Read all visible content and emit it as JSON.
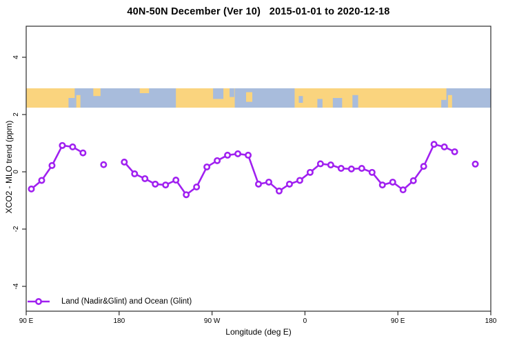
{
  "title": "40N-50N December (Ver 10)   2015-01-01 to 2020-12-18",
  "axes": {
    "x_label": "Longitude (deg E)",
    "y_label": "XCO2 - MLO trend (ppm)"
  },
  "legend": {
    "label": "Land (Nadir&Glint) and Ocean (Glint)"
  },
  "colors": {
    "series": "#A020F0",
    "marker_fill": "#ffffff",
    "land": "#FAD47E",
    "ocean": "#A8BCDC",
    "axis": "#2b2b2b"
  },
  "chart_data": {
    "type": "line",
    "title": "40N-50N December (Ver 10)   2015-01-01 to 2020-12-18",
    "xlabel": "Longitude (deg E)",
    "ylabel": "XCO2 - MLO trend (ppm)",
    "ylim": [
      -5,
      5
    ],
    "grid": false,
    "legend_position": "bottom-left-inside",
    "x_axis": {
      "extended_deg_range": [
        90,
        540
      ],
      "tick_deg": [
        90,
        180,
        270,
        360,
        450,
        540
      ],
      "tick_labels": [
        "90 E",
        "180",
        "90 W",
        "0",
        "90 E",
        "180"
      ],
      "note": "longitude axis wraps eastward: 90E to 180 to 90W to 0 to 90E to 180"
    },
    "y_axis": {
      "tick_values": [
        4,
        2,
        0,
        -2,
        -4
      ],
      "tick_labels": [
        "4",
        "2",
        "0",
        "-2",
        "-4"
      ]
    },
    "series": [
      {
        "name": "Land (Nadir&Glint) and Ocean (Glint)",
        "marker": "open-circle",
        "segments": [
          [
            [
              95,
              -0.6
            ],
            [
              105,
              -0.3
            ],
            [
              115,
              0.22
            ],
            [
              125,
              0.92
            ],
            [
              135,
              0.87
            ],
            [
              145,
              0.66
            ]
          ],
          [
            [
              165,
              0.25
            ]
          ],
          [
            [
              185,
              0.34
            ],
            [
              195,
              -0.07
            ],
            [
              205,
              -0.24
            ],
            [
              215,
              -0.43
            ],
            [
              225,
              -0.46
            ],
            [
              235,
              -0.29
            ],
            [
              245,
              -0.8
            ],
            [
              255,
              -0.53
            ],
            [
              265,
              0.17
            ],
            [
              275,
              0.39
            ],
            [
              285,
              0.58
            ],
            [
              295,
              0.63
            ],
            [
              305,
              0.58
            ],
            [
              315,
              -0.43
            ],
            [
              325,
              -0.36
            ],
            [
              335,
              -0.67
            ],
            [
              345,
              -0.43
            ],
            [
              355,
              -0.3
            ],
            [
              365,
              -0.02
            ],
            [
              375,
              0.28
            ],
            [
              385,
              0.24
            ],
            [
              395,
              0.12
            ],
            [
              405,
              0.1
            ],
            [
              415,
              0.12
            ],
            [
              425,
              -0.02
            ],
            [
              435,
              -0.46
            ],
            [
              445,
              -0.36
            ],
            [
              455,
              -0.63
            ],
            [
              465,
              -0.31
            ],
            [
              475,
              0.19
            ],
            [
              485,
              0.96
            ],
            [
              495,
              0.87
            ],
            [
              505,
              0.7
            ]
          ],
          [
            [
              525,
              0.27
            ]
          ]
        ]
      }
    ],
    "map_band": {
      "description": "land/ocean strip for latitudes 40N-50N drawn across the longitude axis",
      "y_range_ppm": [
        2.25,
        2.92
      ],
      "base": "land",
      "ocean_segments": [
        [
          137,
          235
        ],
        [
          292,
          350
        ],
        [
          497,
          540
        ]
      ],
      "patches": [
        {
          "from": 131,
          "to": 137,
          "top": 0.5,
          "bottom": 1,
          "type": "water"
        },
        {
          "from": 138.5,
          "to": 142.5,
          "top": 0.35,
          "bottom": 1,
          "type": "land"
        },
        {
          "from": 155,
          "to": 162,
          "top": 0,
          "bottom": 0.4,
          "type": "land"
        },
        {
          "from": 200,
          "to": 209,
          "top": 0,
          "bottom": 0.25,
          "type": "land"
        },
        {
          "from": 271,
          "to": 281,
          "top": 0,
          "bottom": 0.55,
          "type": "water"
        },
        {
          "from": 287,
          "to": 291.5,
          "top": 0,
          "bottom": 0.45,
          "type": "water"
        },
        {
          "from": 303,
          "to": 309,
          "top": 0.2,
          "bottom": 0.7,
          "type": "land"
        },
        {
          "from": 354,
          "to": 358,
          "top": 0.4,
          "bottom": 0.75,
          "type": "water"
        },
        {
          "from": 372,
          "to": 377,
          "top": 0.55,
          "bottom": 1,
          "type": "water"
        },
        {
          "from": 387,
          "to": 396,
          "top": 0.5,
          "bottom": 1,
          "type": "water"
        },
        {
          "from": 406,
          "to": 411.5,
          "top": 0.35,
          "bottom": 1,
          "type": "water"
        },
        {
          "from": 492,
          "to": 497,
          "top": 0.6,
          "bottom": 1,
          "type": "water"
        },
        {
          "from": 498.5,
          "to": 502.5,
          "top": 0.35,
          "bottom": 1,
          "type": "land"
        }
      ]
    }
  }
}
